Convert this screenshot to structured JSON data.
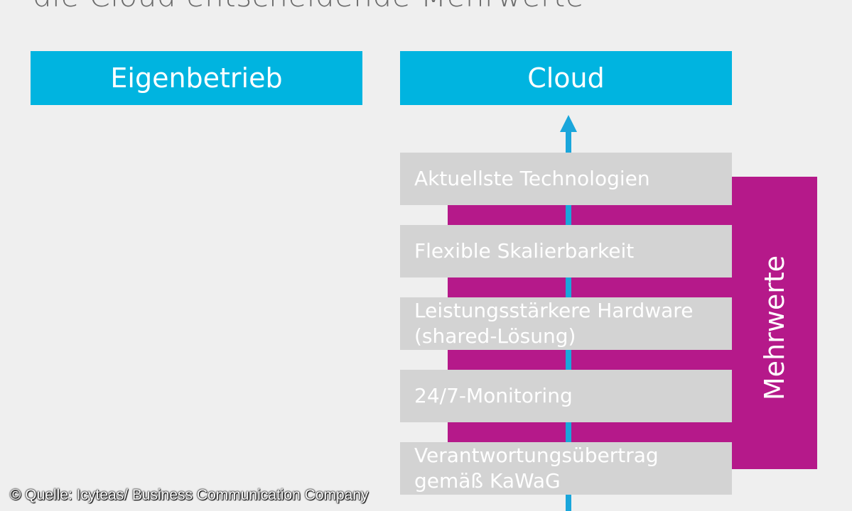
{
  "title_partial": "die Cloud entscheidende Mehrwerte",
  "left_header": "Eigenbetrieb",
  "right_header": "Cloud",
  "mehrwerte_label": "Mehrwerte",
  "benefits": [
    "Aktuellste Technologien",
    "Flexible Skalierbarkeit",
    "Leistungsstärkere Hardware\n(shared-Lösung)",
    "24/7-Monitoring",
    "Verantwortungsübertrag\ngemäß KaWaG"
  ],
  "source": "© Quelle: Icyteas/ Business Communication Company",
  "colors": {
    "header_blue": "#00b4e0",
    "magenta": "#b5198a",
    "box_grey": "#d3d3d3",
    "arrow_blue": "#1aa6db",
    "background": "#efefef"
  }
}
